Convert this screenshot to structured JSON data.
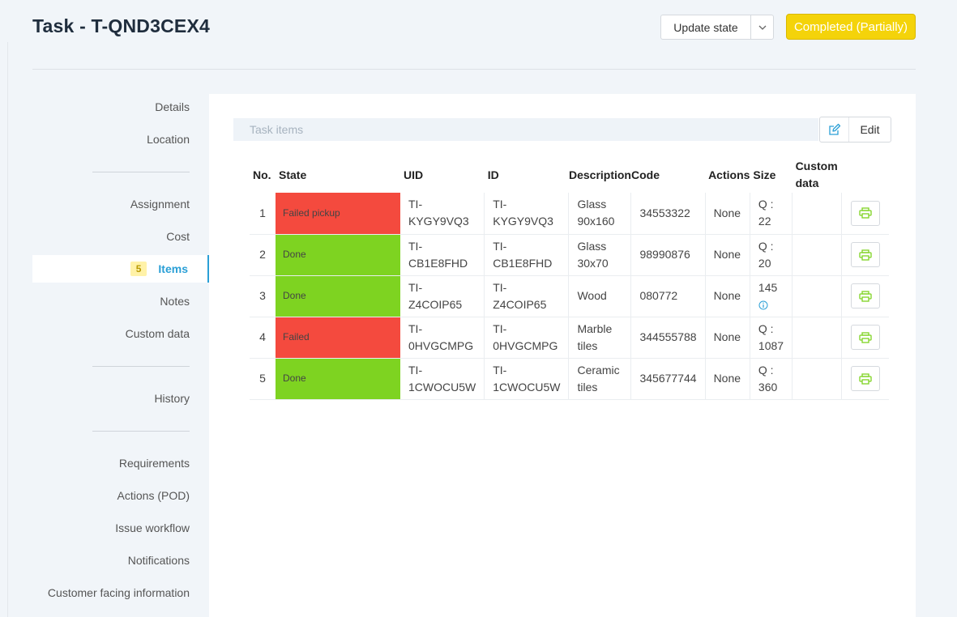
{
  "header": {
    "title": "Task - T-QND3CEX4",
    "update_state_label": "Update state",
    "status_badge": "Completed (Partially)"
  },
  "sidebar": {
    "details": "Details",
    "location": "Location",
    "assignment": "Assignment",
    "cost": "Cost",
    "items": "Items",
    "items_count": "5",
    "notes": "Notes",
    "custom_data": "Custom data",
    "history": "History",
    "requirements": "Requirements",
    "actions_pod": "Actions (POD)",
    "issue_workflow": "Issue workflow",
    "notifications": "Notifications",
    "customer_facing": "Customer facing information"
  },
  "items_panel": {
    "header": "Task items",
    "edit_label": "Edit",
    "columns": {
      "no": "No.",
      "state": "State",
      "uid": "UID",
      "id": "ID",
      "description": "Description",
      "code": "Code",
      "actions": "Actions",
      "size": "Size",
      "custom_data_1": "Custom",
      "custom_data_2": "data"
    },
    "rows": [
      {
        "no": "1",
        "state": "Failed pickup",
        "uid_1": "TI-",
        "uid_2": "KYGY9VQ3",
        "id_1": "TI-",
        "id_2": "KYGY9VQ3",
        "desc_1": "Glass",
        "desc_2": "90x160",
        "code": "34553322",
        "actions": "None",
        "size_1": "Q :",
        "size_2": "22"
      },
      {
        "no": "2",
        "state": "Done",
        "uid_1": "TI-",
        "uid_2": "CB1E8FHD",
        "id_1": "TI-",
        "id_2": "CB1E8FHD",
        "desc_1": "Glass",
        "desc_2": "30x70",
        "code": "98990876",
        "actions": "None",
        "size_1": "Q :",
        "size_2": "20"
      },
      {
        "no": "3",
        "state": "Done",
        "uid_1": "TI-",
        "uid_2": "Z4COIP65",
        "id_1": "TI-",
        "id_2": "Z4COIP65",
        "desc_1": "Wood",
        "desc_2": "",
        "code": "080772",
        "actions": "None",
        "size_1": "145",
        "size_2": ""
      },
      {
        "no": "4",
        "state": "Failed",
        "uid_1": "TI-",
        "uid_2": "0HVGCMPG",
        "id_1": "TI-",
        "id_2": "0HVGCMPG",
        "desc_1": "Marble",
        "desc_2": "tiles",
        "code": "344555788",
        "actions": "None",
        "size_1": "Q :",
        "size_2": "1087"
      },
      {
        "no": "5",
        "state": "Done",
        "uid_1": "TI-",
        "uid_2": "1CWOCU5W",
        "id_1": "TI-",
        "id_2": "1CWOCU5W",
        "desc_1": "Ceramic",
        "desc_2": "tiles",
        "code": "345677744",
        "actions": "None",
        "size_1": "Q :",
        "size_2": "360"
      }
    ]
  },
  "colors": {
    "accent": "#2a9fd6",
    "link": "#1f8fd0",
    "failed": "#f44a3e",
    "done": "#7ed321",
    "status_badge": "#f4d30a",
    "print_icon": "#7ed321"
  },
  "icons": {
    "update_caret": "chevron-down-icon",
    "edit": "edit-icon",
    "print": "printer-icon",
    "info": "info-icon"
  }
}
